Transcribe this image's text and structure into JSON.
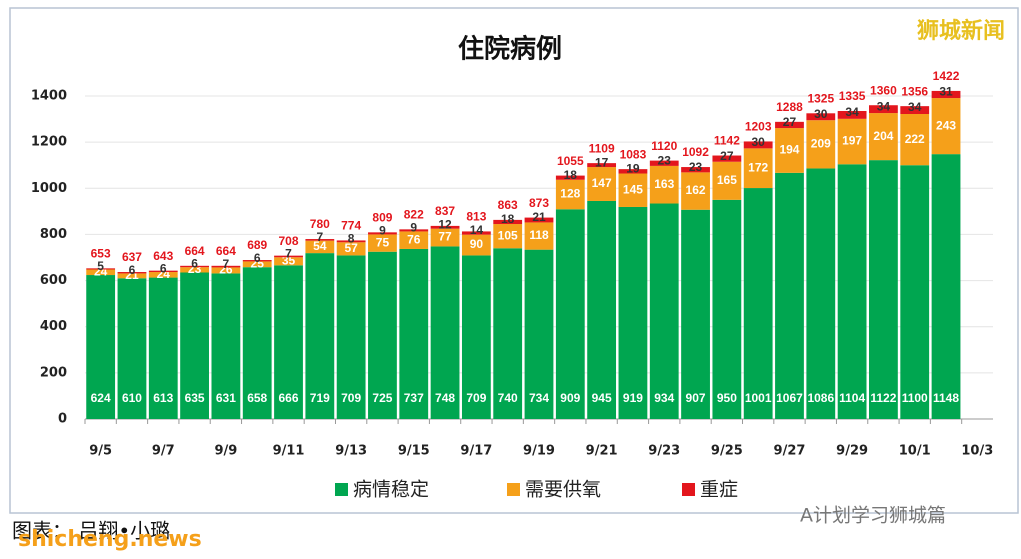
{
  "chart_data": {
    "type": "stacked_bar",
    "title": "住院病例",
    "categories": [
      "9/5",
      null,
      "9/7",
      null,
      "9/9",
      null,
      "9/11",
      null,
      "9/13",
      null,
      "9/15",
      null,
      "9/17",
      null,
      "9/19",
      null,
      "9/21",
      null,
      "9/23",
      null,
      "9/25",
      null,
      "9/27",
      null,
      "9/29",
      null,
      "10/1",
      null,
      "10/3"
    ],
    "series": [
      {
        "name": "病情稳定",
        "color": "#00a650",
        "values": [
          624,
          610,
          613,
          635,
          631,
          658,
          666,
          719,
          709,
          725,
          737,
          748,
          709,
          740,
          734,
          909,
          945,
          919,
          934,
          907,
          950,
          1001,
          1067,
          1086,
          1104,
          1122,
          1100,
          1148,
          null
        ]
      },
      {
        "name": "需要供氧",
        "color": "#f5a01a",
        "values": [
          24,
          21,
          24,
          23,
          26,
          25,
          35,
          54,
          57,
          75,
          76,
          77,
          90,
          105,
          118,
          128,
          147,
          145,
          163,
          162,
          165,
          172,
          194,
          209,
          197,
          204,
          222,
          243,
          null
        ]
      },
      {
        "name": "重症",
        "color": "#e3161d",
        "values": [
          5,
          6,
          6,
          6,
          7,
          6,
          7,
          7,
          8,
          9,
          9,
          12,
          14,
          18,
          21,
          18,
          17,
          19,
          23,
          23,
          27,
          30,
          27,
          30,
          34,
          34,
          34,
          31,
          null
        ]
      }
    ],
    "totals": [
      653,
      637,
      643,
      664,
      664,
      689,
      708,
      780,
      774,
      809,
      822,
      837,
      813,
      863,
      873,
      1055,
      1109,
      1083,
      1120,
      1092,
      1142,
      1203,
      1288,
      1325,
      1335,
      1360,
      1356,
      1422,
      null
    ],
    "ylim": [
      0,
      1500
    ],
    "yticks": [
      0,
      200,
      400,
      600,
      800,
      1000,
      1200,
      1400
    ],
    "grid": true,
    "legend": "bottom",
    "watermark": "狮城新闻",
    "credit": "图表：  吕翔•小璐",
    "source": "A计划学习狮城篇",
    "site": "shicheng.news"
  }
}
